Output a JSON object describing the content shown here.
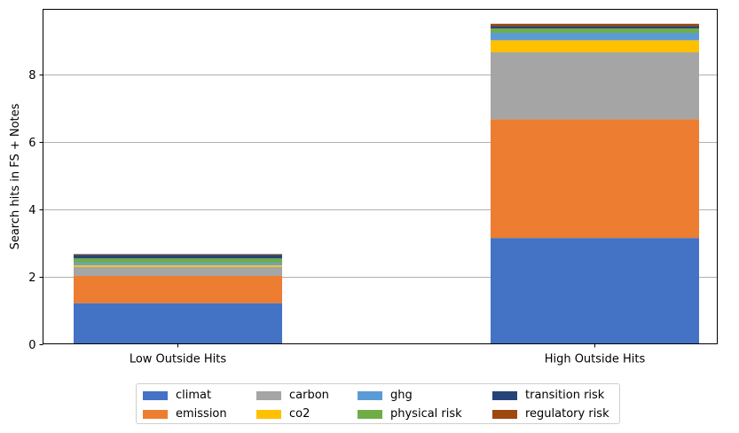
{
  "chart_data": {
    "type": "bar",
    "stacked": true,
    "title": "",
    "xlabel": "",
    "ylabel": "Search hits in FS + Notes",
    "ylim": [
      0,
      9.95
    ],
    "yticks": [
      0,
      2,
      4,
      6,
      8
    ],
    "grid": "y",
    "legend_position": "bottom-center",
    "categories": [
      "Low Outside Hits",
      "High Outside Hits"
    ],
    "series": [
      {
        "name": "climat",
        "color": "#4472c4",
        "values": [
          1.21,
          3.15
        ]
      },
      {
        "name": "emission",
        "color": "#ed7d31",
        "values": [
          0.81,
          3.53
        ]
      },
      {
        "name": "carbon",
        "color": "#a5a5a5",
        "values": [
          0.27,
          1.99
        ]
      },
      {
        "name": "co2",
        "color": "#ffc000",
        "values": [
          0.05,
          0.36
        ]
      },
      {
        "name": "ghg",
        "color": "#5b9bd5",
        "values": [
          0.07,
          0.22
        ]
      },
      {
        "name": "physical risk",
        "color": "#70ad47",
        "values": [
          0.13,
          0.13
        ]
      },
      {
        "name": "transition risk",
        "color": "#264478",
        "values": [
          0.11,
          0.07
        ]
      },
      {
        "name": "regulatory risk",
        "color": "#9e480e",
        "values": [
          0.02,
          0.07
        ]
      }
    ]
  }
}
